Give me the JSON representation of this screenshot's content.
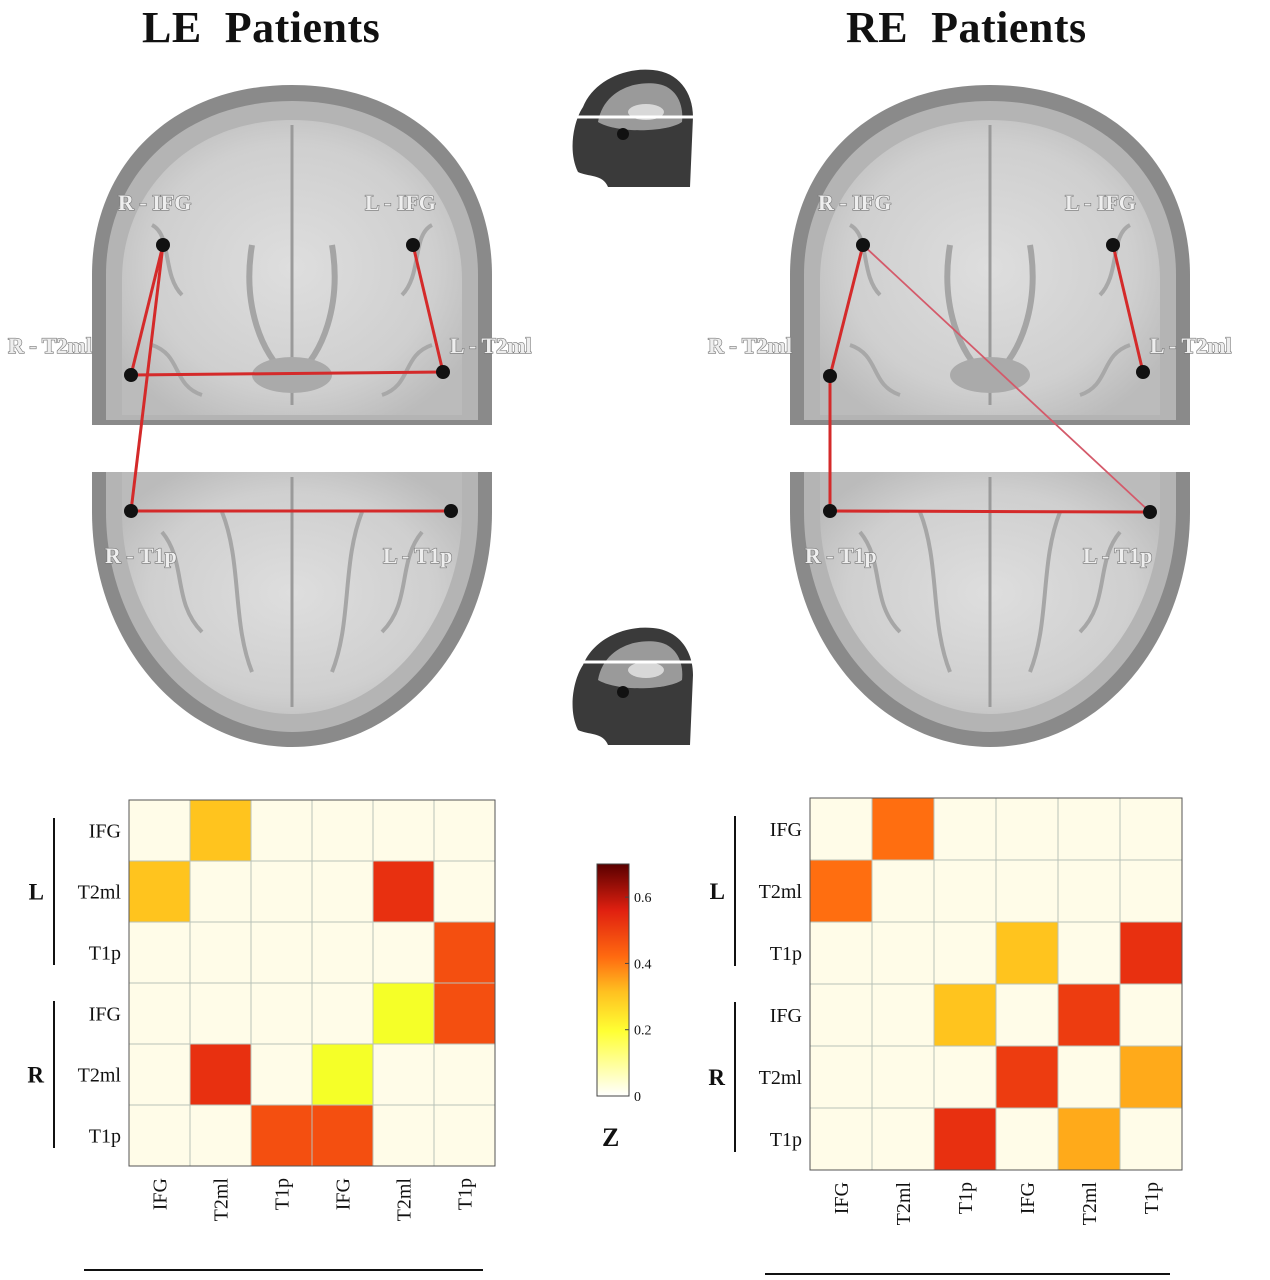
{
  "figure": {
    "left_title": "LE  Patients",
    "right_title": "RE  Patients"
  },
  "brain_labels": [
    "R - IFG",
    "L - IFG",
    "R - T2ml",
    "L - T2ml",
    "R - T1p",
    "L - T1p"
  ],
  "colors": {
    "connection_line": "#d42a2a",
    "node": "#111111"
  },
  "icons": [
    "head-sagittal-icon-top",
    "head-sagittal-icon-bottom"
  ],
  "chart_data": [
    {
      "type": "heatmap",
      "name": "LE Patients",
      "row_labels": [
        "IFG",
        "T2ml",
        "T1p",
        "IFG",
        "T2ml",
        "T1p"
      ],
      "col_labels": [
        "IFG",
        "T2ml",
        "T1p",
        "IFG",
        "T2ml",
        "T1p"
      ],
      "row_groups": [
        "L",
        "R"
      ],
      "col_groups": [
        "L",
        "R"
      ],
      "values": [
        [
          0,
          0.3,
          0,
          0,
          0,
          0
        ],
        [
          0.3,
          0,
          0,
          0,
          0.5,
          0
        ],
        [
          0,
          0,
          0,
          0,
          0,
          0.45
        ],
        [
          0,
          0,
          0,
          0,
          0.2,
          0.45
        ],
        [
          0,
          0.5,
          0,
          0.2,
          0,
          0
        ],
        [
          0,
          0,
          0.45,
          0.45,
          0,
          0
        ]
      ],
      "connections": [
        [
          "R - IFG",
          "R - T2ml"
        ],
        [
          "R - IFG",
          "R - T1p"
        ],
        [
          "R - T2ml",
          "L - T2ml"
        ],
        [
          "L - IFG",
          "L - T2ml"
        ],
        [
          "R - T1p",
          "L - T1p"
        ]
      ]
    },
    {
      "type": "heatmap",
      "name": "RE Patients",
      "row_labels": [
        "IFG",
        "T2ml",
        "T1p",
        "IFG",
        "T2ml",
        "T1p"
      ],
      "col_labels": [
        "IFG",
        "T2ml",
        "T1p",
        "IFG",
        "T2ml",
        "T1p"
      ],
      "row_groups": [
        "L",
        "R"
      ],
      "col_groups": [
        "L",
        "R"
      ],
      "values": [
        [
          0,
          0.4,
          0,
          0,
          0,
          0
        ],
        [
          0.4,
          0,
          0,
          0,
          0,
          0
        ],
        [
          0,
          0,
          0,
          0.3,
          0,
          0.5
        ],
        [
          0,
          0,
          0.3,
          0,
          0.48,
          0
        ],
        [
          0,
          0,
          0,
          0.48,
          0,
          0.33
        ],
        [
          0,
          0,
          0.5,
          0,
          0.33,
          0
        ]
      ],
      "connections": [
        [
          "R - IFG",
          "R - T2ml"
        ],
        [
          "R - T2ml",
          "R - T1p"
        ],
        [
          "R - IFG",
          "L - T1p"
        ],
        [
          "L - IFG",
          "L - T2ml"
        ],
        [
          "R - T1p",
          "L - T1p"
        ]
      ]
    }
  ],
  "colorbar": {
    "label": "Z",
    "range": [
      0,
      0.7
    ],
    "ticks": [
      "0",
      "0.2",
      "0.4",
      "0.6"
    ]
  }
}
